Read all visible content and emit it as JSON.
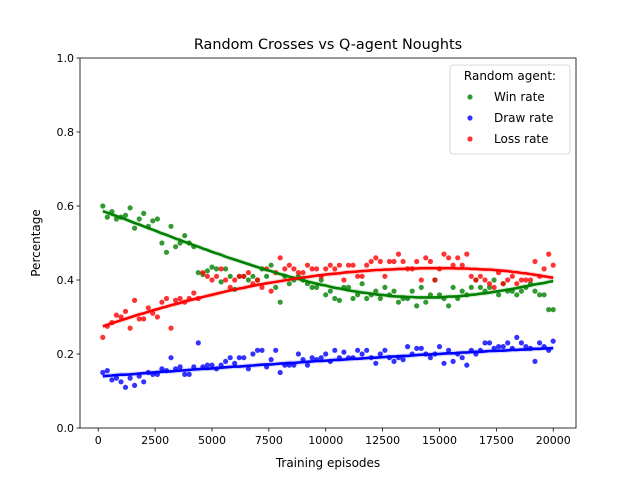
{
  "chart_data": {
    "type": "scatter",
    "title": "Random Crosses vs Q-agent Noughts",
    "xlabel": "Training episodes",
    "ylabel": "Percentage",
    "xlim": [
      -800,
      21000
    ],
    "ylim": [
      0.0,
      1.0
    ],
    "xticks": [
      0,
      2500,
      5000,
      7500,
      10000,
      12500,
      15000,
      17500,
      20000
    ],
    "xtick_labels": [
      "0",
      "2500",
      "5000",
      "7500",
      "10000",
      "12500",
      "15000",
      "17500",
      "20000"
    ],
    "yticks": [
      0.0,
      0.2,
      0.4,
      0.6,
      0.8,
      1.0
    ],
    "ytick_labels": [
      "0.0",
      "0.2",
      "0.4",
      "0.6",
      "0.8",
      "1.0"
    ],
    "grid": false,
    "legend": {
      "title": "Random agent:",
      "placement": "top-right"
    },
    "x": [
      200,
      400,
      600,
      800,
      1000,
      1200,
      1400,
      1600,
      1800,
      2000,
      2200,
      2400,
      2600,
      2800,
      3000,
      3200,
      3400,
      3600,
      3800,
      4000,
      4200,
      4400,
      4600,
      4800,
      5000,
      5200,
      5400,
      5600,
      5800,
      6000,
      6200,
      6400,
      6600,
      6800,
      7000,
      7200,
      7400,
      7600,
      7800,
      8000,
      8200,
      8400,
      8600,
      8800,
      9000,
      9200,
      9400,
      9600,
      9800,
      10000,
      10200,
      10400,
      10600,
      10800,
      11000,
      11200,
      11400,
      11600,
      11800,
      12000,
      12200,
      12400,
      12600,
      12800,
      13000,
      13200,
      13400,
      13600,
      13800,
      14000,
      14200,
      14400,
      14600,
      14800,
      15000,
      15200,
      15400,
      15600,
      15800,
      16000,
      16200,
      16400,
      16600,
      16800,
      17000,
      17200,
      17400,
      17600,
      17800,
      18000,
      18200,
      18400,
      18600,
      18800,
      19000,
      19200,
      19400,
      19600,
      19800,
      20000
    ],
    "series": [
      {
        "name": "Win rate",
        "color": "#008000",
        "values": [
          0.6,
          0.57,
          0.585,
          0.565,
          0.57,
          0.575,
          0.595,
          0.54,
          0.565,
          0.58,
          0.545,
          0.56,
          0.565,
          0.5,
          0.475,
          0.545,
          0.49,
          0.5,
          0.52,
          0.5,
          0.49,
          0.42,
          0.415,
          0.425,
          0.435,
          0.43,
          0.395,
          0.43,
          0.41,
          0.375,
          0.41,
          0.41,
          0.4,
          0.41,
          0.4,
          0.43,
          0.41,
          0.44,
          0.38,
          0.34,
          0.41,
          0.39,
          0.4,
          0.41,
          0.4,
          0.39,
          0.38,
          0.38,
          0.4,
          0.36,
          0.37,
          0.35,
          0.345,
          0.38,
          0.38,
          0.35,
          0.36,
          0.39,
          0.35,
          0.36,
          0.37,
          0.35,
          0.38,
          0.36,
          0.37,
          0.34,
          0.35,
          0.35,
          0.37,
          0.33,
          0.38,
          0.34,
          0.36,
          0.4,
          0.36,
          0.35,
          0.33,
          0.38,
          0.35,
          0.37,
          0.36,
          0.38,
          0.4,
          0.38,
          0.37,
          0.38,
          0.4,
          0.36,
          0.39,
          0.37,
          0.37,
          0.36,
          0.37,
          0.38,
          0.39,
          0.37,
          0.36,
          0.36,
          0.32,
          0.32
        ],
        "fit": [
          0.586,
          0.582,
          0.577,
          0.573,
          0.568,
          0.564,
          0.559,
          0.554,
          0.55,
          0.545,
          0.54,
          0.536,
          0.531,
          0.526,
          0.522,
          0.517,
          0.512,
          0.508,
          0.503,
          0.499,
          0.494,
          0.49,
          0.485,
          0.481,
          0.476,
          0.472,
          0.468,
          0.463,
          0.459,
          0.455,
          0.451,
          0.447,
          0.443,
          0.439,
          0.435,
          0.431,
          0.427,
          0.424,
          0.42,
          0.416,
          0.413,
          0.409,
          0.406,
          0.403,
          0.399,
          0.396,
          0.393,
          0.39,
          0.387,
          0.385,
          0.382,
          0.379,
          0.377,
          0.375,
          0.372,
          0.37,
          0.368,
          0.366,
          0.365,
          0.363,
          0.361,
          0.36,
          0.359,
          0.357,
          0.356,
          0.355,
          0.355,
          0.354,
          0.354,
          0.353,
          0.353,
          0.353,
          0.353,
          0.353,
          0.353,
          0.354,
          0.355,
          0.355,
          0.356,
          0.357,
          0.358,
          0.36,
          0.361,
          0.363,
          0.364,
          0.366,
          0.368,
          0.37,
          0.372,
          0.374,
          0.376,
          0.378,
          0.381,
          0.383,
          0.385,
          0.388,
          0.39,
          0.392,
          0.395,
          0.397
        ]
      },
      {
        "name": "Draw rate",
        "color": "#0000ff",
        "values": [
          0.15,
          0.155,
          0.13,
          0.135,
          0.125,
          0.11,
          0.135,
          0.115,
          0.14,
          0.125,
          0.15,
          0.145,
          0.145,
          0.16,
          0.155,
          0.19,
          0.16,
          0.165,
          0.145,
          0.145,
          0.165,
          0.23,
          0.165,
          0.17,
          0.17,
          0.16,
          0.17,
          0.18,
          0.19,
          0.175,
          0.19,
          0.19,
          0.16,
          0.2,
          0.21,
          0.21,
          0.165,
          0.185,
          0.21,
          0.15,
          0.17,
          0.17,
          0.17,
          0.2,
          0.185,
          0.17,
          0.19,
          0.185,
          0.19,
          0.2,
          0.18,
          0.21,
          0.19,
          0.205,
          0.19,
          0.19,
          0.21,
          0.2,
          0.21,
          0.19,
          0.175,
          0.2,
          0.21,
          0.19,
          0.18,
          0.19,
          0.185,
          0.22,
          0.2,
          0.215,
          0.215,
          0.2,
          0.19,
          0.2,
          0.22,
          0.175,
          0.21,
          0.18,
          0.2,
          0.19,
          0.17,
          0.21,
          0.2,
          0.21,
          0.23,
          0.23,
          0.215,
          0.22,
          0.22,
          0.23,
          0.215,
          0.245,
          0.23,
          0.22,
          0.215,
          0.18,
          0.23,
          0.22,
          0.21,
          0.235
        ],
        "fit": [
          0.14,
          0.141,
          0.142,
          0.143,
          0.144,
          0.144,
          0.145,
          0.146,
          0.147,
          0.148,
          0.149,
          0.15,
          0.151,
          0.152,
          0.153,
          0.153,
          0.154,
          0.155,
          0.156,
          0.157,
          0.158,
          0.159,
          0.16,
          0.16,
          0.161,
          0.162,
          0.163,
          0.164,
          0.165,
          0.166,
          0.166,
          0.167,
          0.168,
          0.169,
          0.17,
          0.171,
          0.172,
          0.172,
          0.173,
          0.174,
          0.175,
          0.176,
          0.176,
          0.177,
          0.178,
          0.179,
          0.18,
          0.181,
          0.181,
          0.182,
          0.183,
          0.184,
          0.184,
          0.185,
          0.186,
          0.187,
          0.187,
          0.188,
          0.189,
          0.19,
          0.19,
          0.191,
          0.192,
          0.193,
          0.193,
          0.194,
          0.195,
          0.195,
          0.196,
          0.197,
          0.198,
          0.198,
          0.199,
          0.2,
          0.2,
          0.201,
          0.202,
          0.202,
          0.203,
          0.204,
          0.204,
          0.205,
          0.206,
          0.206,
          0.207,
          0.208,
          0.208,
          0.209,
          0.209,
          0.21,
          0.211,
          0.211,
          0.212,
          0.212,
          0.213,
          0.214,
          0.214,
          0.215,
          0.215,
          0.216
        ]
      },
      {
        "name": "Loss rate",
        "color": "#ff0000",
        "values": [
          0.245,
          0.275,
          0.285,
          0.305,
          0.3,
          0.315,
          0.27,
          0.345,
          0.295,
          0.295,
          0.325,
          0.31,
          0.3,
          0.34,
          0.35,
          0.27,
          0.345,
          0.35,
          0.34,
          0.35,
          0.365,
          0.35,
          0.42,
          0.41,
          0.4,
          0.41,
          0.43,
          0.4,
          0.38,
          0.4,
          0.41,
          0.41,
          0.42,
          0.39,
          0.4,
          0.38,
          0.43,
          0.37,
          0.42,
          0.46,
          0.43,
          0.44,
          0.43,
          0.42,
          0.42,
          0.44,
          0.43,
          0.43,
          0.41,
          0.43,
          0.44,
          0.43,
          0.44,
          0.4,
          0.44,
          0.44,
          0.41,
          0.41,
          0.44,
          0.45,
          0.46,
          0.45,
          0.41,
          0.45,
          0.45,
          0.47,
          0.45,
          0.43,
          0.43,
          0.45,
          0.4,
          0.46,
          0.45,
          0.4,
          0.43,
          0.47,
          0.46,
          0.44,
          0.46,
          0.44,
          0.47,
          0.41,
          0.4,
          0.41,
          0.4,
          0.39,
          0.38,
          0.42,
          0.39,
          0.4,
          0.41,
          0.39,
          0.4,
          0.4,
          0.4,
          0.45,
          0.41,
          0.43,
          0.47,
          0.44
        ],
        "fit": [
          0.275,
          0.279,
          0.283,
          0.287,
          0.291,
          0.295,
          0.299,
          0.303,
          0.307,
          0.31,
          0.314,
          0.318,
          0.321,
          0.325,
          0.328,
          0.332,
          0.335,
          0.338,
          0.342,
          0.345,
          0.348,
          0.351,
          0.354,
          0.357,
          0.36,
          0.363,
          0.366,
          0.369,
          0.372,
          0.374,
          0.377,
          0.379,
          0.382,
          0.384,
          0.387,
          0.389,
          0.391,
          0.393,
          0.395,
          0.397,
          0.399,
          0.401,
          0.403,
          0.405,
          0.407,
          0.408,
          0.41,
          0.412,
          0.413,
          0.415,
          0.416,
          0.417,
          0.418,
          0.42,
          0.421,
          0.422,
          0.423,
          0.424,
          0.425,
          0.426,
          0.427,
          0.427,
          0.428,
          0.428,
          0.429,
          0.43,
          0.43,
          0.431,
          0.431,
          0.431,
          0.432,
          0.432,
          0.432,
          0.432,
          0.432,
          0.432,
          0.432,
          0.432,
          0.431,
          0.431,
          0.431,
          0.43,
          0.43,
          0.429,
          0.428,
          0.428,
          0.427,
          0.426,
          0.425,
          0.424,
          0.422,
          0.421,
          0.419,
          0.418,
          0.416,
          0.414,
          0.412,
          0.41,
          0.408,
          0.406
        ]
      }
    ]
  }
}
